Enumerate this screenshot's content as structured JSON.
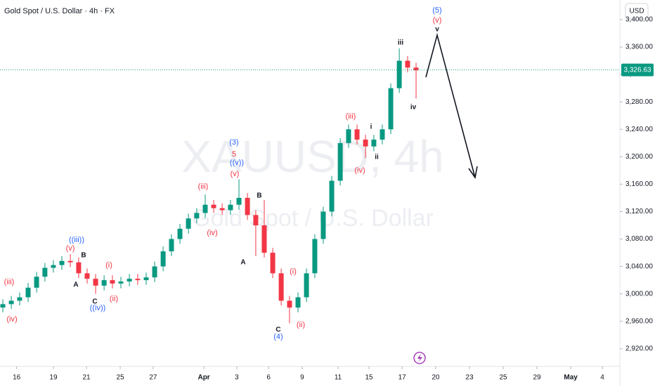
{
  "chart_data": {
    "type": "candlestick",
    "title": "Gold Spot / U.S. Dollar · 4h · FX",
    "watermark": "XAUUSD, 4h",
    "watermark_subtitle": "Gold Spot / U.S. Dollar",
    "currency": "USD",
    "up_color": "#089981",
    "down_color": "#f23645",
    "x": [
      -0.83,
      -0.32,
      0.18,
      0.69,
      1.2,
      1.7,
      2.21,
      2.72,
      3.23,
      3.73,
      4.24,
      4.75,
      5.26,
      5.76,
      6.27,
      6.78,
      7.28,
      7.79,
      8.3,
      8.81,
      9.31,
      9.82,
      10.33,
      10.83,
      11.34,
      11.85,
      12.36,
      12.86,
      13.37,
      13.88,
      14.38,
      14.89,
      15.4,
      15.91,
      16.41,
      16.92,
      17.43,
      17.93,
      18.44,
      18.95,
      19.46,
      19.96,
      20.47,
      20.98,
      21.48,
      21.99,
      22.5,
      23.01,
      23.51,
      24.02
    ],
    "open": [
      2980,
      2985,
      2990,
      2995,
      3009,
      3025,
      3038,
      3042,
      3048,
      3046,
      3030,
      3022,
      3012,
      3020,
      3015,
      3018,
      3022,
      3020,
      3024,
      3040,
      3062,
      3080,
      3095,
      3110,
      3118,
      3130,
      3125,
      3122,
      3130,
      3140,
      3115,
      3100,
      3060,
      3030,
      2990,
      2980,
      2995,
      3030,
      3080,
      3120,
      3165,
      3220,
      3240,
      3225,
      3215,
      3225,
      3240,
      3300,
      3340,
      3330
    ],
    "high": [
      2992,
      2997,
      3002,
      3016,
      3032,
      3045,
      3049,
      3055,
      3058,
      3053,
      3037,
      3029,
      3027,
      3027,
      3025,
      3029,
      3029,
      3031,
      3047,
      3069,
      3087,
      3102,
      3117,
      3125,
      3145,
      3137,
      3132,
      3137,
      3167,
      3147,
      3122,
      3137,
      3067,
      3037,
      2997,
      3002,
      3037,
      3087,
      3127,
      3172,
      3227,
      3247,
      3247,
      3232,
      3232,
      3247,
      3307,
      3358,
      3347,
      3337
    ],
    "low": [
      2973,
      2978,
      2983,
      2988,
      3002,
      3018,
      3031,
      3035,
      3039,
      3023,
      3015,
      3000,
      3005,
      3008,
      3008,
      3011,
      3013,
      3013,
      3017,
      3033,
      3055,
      3073,
      3088,
      3103,
      3111,
      3118,
      3115,
      3115,
      3123,
      3108,
      3055,
      3053,
      3023,
      2983,
      2957,
      2973,
      2988,
      3023,
      3073,
      3113,
      3158,
      3213,
      3218,
      3198,
      3208,
      3218,
      3233,
      3293,
      3323,
      3285
    ],
    "close": [
      2985,
      2990,
      2995,
      3009,
      3025,
      3038,
      3042,
      3048,
      3046,
      3030,
      3022,
      3012,
      3020,
      3015,
      3018,
      3022,
      3020,
      3024,
      3040,
      3062,
      3080,
      3095,
      3110,
      3118,
      3130,
      3125,
      3122,
      3130,
      3140,
      3115,
      3100,
      3060,
      3030,
      2990,
      2980,
      2995,
      3030,
      3080,
      3120,
      3165,
      3220,
      3240,
      3225,
      3215,
      3225,
      3240,
      3300,
      3340,
      3330,
      3326
    ],
    "last_price": {
      "value": 3326.63,
      "label": "3,326.63"
    },
    "xlim": [
      -1,
      36.19
    ],
    "ylim": [
      2896.3,
      3428.6
    ],
    "xticks": [
      {
        "value": 0,
        "label": "16"
      },
      {
        "value": 2.21,
        "label": "19"
      },
      {
        "value": 4.2,
        "label": "21"
      },
      {
        "value": 6.23,
        "label": "25"
      },
      {
        "value": 8.21,
        "label": "27"
      },
      {
        "value": 11.26,
        "label": "Apr"
      },
      {
        "value": 13.24,
        "label": "3"
      },
      {
        "value": 15.15,
        "label": "6"
      },
      {
        "value": 17.17,
        "label": "9"
      },
      {
        "value": 19.33,
        "label": "11"
      },
      {
        "value": 21.19,
        "label": "15"
      },
      {
        "value": 23.18,
        "label": "17"
      },
      {
        "value": 25.2,
        "label": "20"
      },
      {
        "value": 27.23,
        "label": "23"
      },
      {
        "value": 29.26,
        "label": "25"
      },
      {
        "value": 31.29,
        "label": "29"
      },
      {
        "value": 33.32,
        "label": "May"
      },
      {
        "value": 35.22,
        "label": "4"
      }
    ],
    "yticks": [
      {
        "value": 2920,
        "label": "2,920.00"
      },
      {
        "value": 2960,
        "label": "2,960.00"
      },
      {
        "value": 3000,
        "label": "3,000.00"
      },
      {
        "value": 3040,
        "label": "3,040.00"
      },
      {
        "value": 3080,
        "label": "3,080.00"
      },
      {
        "value": 3120,
        "label": "3,120.00"
      },
      {
        "value": 3160,
        "label": "3,160.00"
      },
      {
        "value": 3200,
        "label": "3,200.00"
      },
      {
        "value": 3240,
        "label": "3,240.00"
      },
      {
        "value": 3280,
        "label": "3,280.00"
      },
      {
        "value": 3320,
        "label": "3,320.00"
      },
      {
        "value": 3360,
        "label": "3,360.00"
      },
      {
        "value": 3400,
        "label": "3,400.00"
      }
    ],
    "annotations": [
      "(iii)",
      "(iv)",
      "((iii))",
      "(v)",
      "B",
      "A",
      "C",
      "((iv))",
      "(i)",
      "(ii)",
      "(iii)",
      "(iv)",
      "(3)",
      "5",
      "((v))",
      "(v)",
      "B",
      "A",
      "(i)",
      "(ii)",
      "C",
      "(4)",
      "(iii)",
      "i",
      "ii",
      "(iv)",
      "iii",
      "iv",
      "(5)",
      "(v)",
      "v"
    ]
  }
}
